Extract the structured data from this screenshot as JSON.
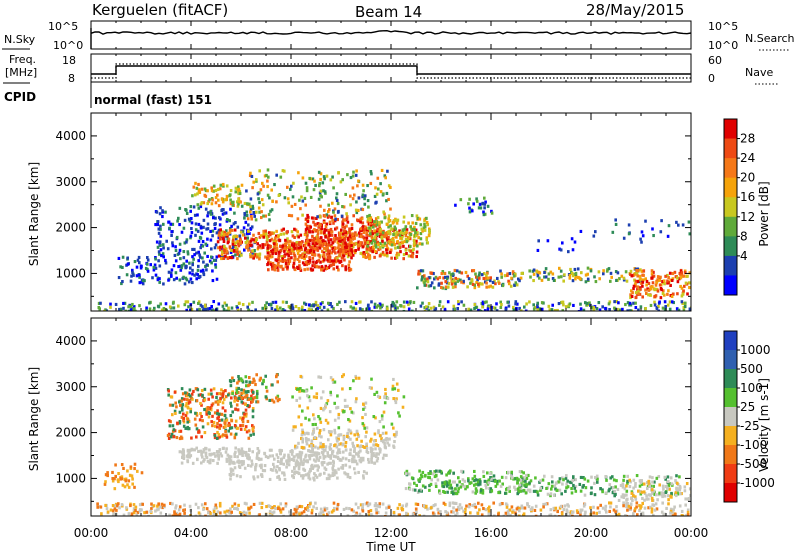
{
  "header": {
    "title": "Kerguelen (fitACF)",
    "beam": "Beam 14",
    "date": "28/May/2015"
  },
  "strip_labels": {
    "nsky": "N.Sky",
    "nsearch": "N.Search",
    "freq_line1": "Freq.",
    "freq_line2": "[MHz]",
    "nave": "Nave",
    "cpid": "CPID",
    "mode": "normal (fast) 151",
    "nsky_ticks": [
      "10^5",
      "10^0"
    ],
    "nsearch_ticks": [
      "10^5",
      "10^0"
    ],
    "freq_ticks": [
      "18",
      "8"
    ],
    "nave_ticks": [
      "60",
      "0"
    ]
  },
  "chart_data": [
    {
      "type": "heatmap",
      "name": "power",
      "xlabel": "",
      "ylabel": "Slant Range [km]",
      "ylim": [
        180,
        4500
      ],
      "yticks": [
        "1000",
        "2000",
        "3000",
        "4000"
      ],
      "colorbar_label": "Power [dB]",
      "colorbar_ticks": [
        "4",
        "8",
        "12",
        "16",
        "20",
        "24",
        "28"
      ],
      "colors": [
        "#0000ff",
        "#1c3fb0",
        "#2e8b57",
        "#5faa3a",
        "#c8c820",
        "#f5a30a",
        "#f57818",
        "#ee4a14",
        "#e00000"
      ]
    },
    {
      "type": "heatmap",
      "name": "velocity",
      "xlabel": "Time UT",
      "ylabel": "Slant Range [km]",
      "ylim": [
        180,
        4500
      ],
      "xticks": [
        "00:00",
        "04:00",
        "08:00",
        "12:00",
        "16:00",
        "20:00",
        "00:00"
      ],
      "yticks": [
        "1000",
        "2000",
        "3000",
        "4000"
      ],
      "colorbar_label": "Velocity [m s-1]",
      "colorbar_ticks": [
        "1000",
        "500",
        "100",
        "25",
        "-25",
        "-100",
        "-500",
        "-1000"
      ],
      "colors": [
        "#2040c0",
        "#3060b0",
        "#2e8b57",
        "#55c030",
        "#c8c8c0",
        "#f5b020",
        "#f07818",
        "#f03c14",
        "#e00000"
      ]
    }
  ]
}
